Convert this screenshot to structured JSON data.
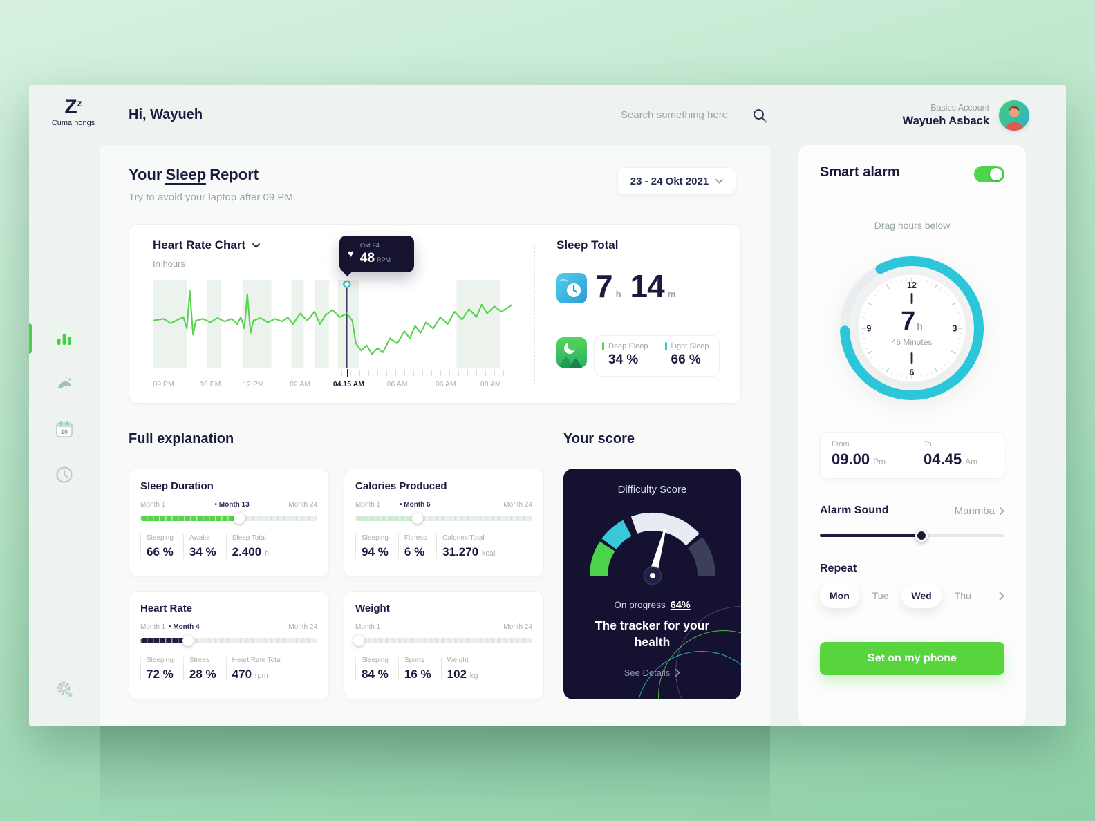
{
  "palette": {
    "accent_green": "#4ccd49",
    "accent_teal": "#33c6d8",
    "navy": "#1d1a40",
    "muted": "#9aa69f",
    "dark_card": "#151231"
  },
  "header": {
    "logo": {
      "mark": "Z",
      "mark_small": "z",
      "caption": "Cuma nongs"
    },
    "greeting": "Hi, Wayueh",
    "search_placeholder": "Search something here",
    "account_type": "Basics Account",
    "account_name": "Wayueh Asback"
  },
  "sidebar": {
    "calendar_day": "10"
  },
  "report": {
    "title_pre": "Your",
    "title_mid": "Sleep",
    "title_post": "Report",
    "subtitle": "Try to avoid your laptop after 09 PM.",
    "date_range": "23 - 24 Okt 2021"
  },
  "heart_chart": {
    "title": "Heart Rate Chart",
    "subtitle": "In hours",
    "tooltip": {
      "date": "Okt 24",
      "value": "48",
      "unit": "RPM",
      "heart": "♥"
    },
    "chart_data": {
      "type": "line",
      "line_color": "#55d44c",
      "band_color": "#ebf3ec",
      "marker": {
        "x_pct": 54,
        "y_pct": 5
      },
      "bands": [
        [
          0,
          9.5
        ],
        [
          15,
          4
        ],
        [
          25,
          8
        ],
        [
          38.5,
          3.5
        ],
        [
          45,
          4
        ],
        [
          51.5,
          6
        ],
        [
          84.5,
          12
        ]
      ],
      "points": [
        [
          0,
          46
        ],
        [
          3,
          44
        ],
        [
          5,
          49
        ],
        [
          7,
          45
        ],
        [
          8.5,
          42
        ],
        [
          9.5,
          55
        ],
        [
          10.3,
          12
        ],
        [
          11.2,
          62
        ],
        [
          12,
          46
        ],
        [
          14,
          44
        ],
        [
          16,
          48
        ],
        [
          18,
          43
        ],
        [
          20,
          47
        ],
        [
          22,
          44
        ],
        [
          23.5,
          50
        ],
        [
          24.5,
          42
        ],
        [
          25.5,
          55
        ],
        [
          26.3,
          16
        ],
        [
          27.2,
          60
        ],
        [
          28,
          46
        ],
        [
          30,
          43
        ],
        [
          32,
          48
        ],
        [
          34,
          44
        ],
        [
          36,
          47
        ],
        [
          37.5,
          42
        ],
        [
          39,
          50
        ],
        [
          41,
          38
        ],
        [
          43,
          46
        ],
        [
          45,
          36
        ],
        [
          46.5,
          50
        ],
        [
          48,
          40
        ],
        [
          50,
          34
        ],
        [
          52,
          42
        ],
        [
          54,
          38
        ],
        [
          55.5,
          46
        ],
        [
          56.5,
          72
        ],
        [
          58,
          80
        ],
        [
          59.5,
          74
        ],
        [
          61,
          84
        ],
        [
          62.5,
          77
        ],
        [
          64,
          82
        ],
        [
          66,
          66
        ],
        [
          68,
          72
        ],
        [
          70,
          58
        ],
        [
          71.5,
          66
        ],
        [
          73,
          52
        ],
        [
          74.5,
          60
        ],
        [
          76,
          48
        ],
        [
          78,
          55
        ],
        [
          80,
          42
        ],
        [
          82,
          50
        ],
        [
          84,
          36
        ],
        [
          86,
          45
        ],
        [
          88,
          33
        ],
        [
          90,
          42
        ],
        [
          91.5,
          28
        ],
        [
          93,
          38
        ],
        [
          95,
          30
        ],
        [
          97,
          36
        ],
        [
          100,
          28
        ]
      ],
      "x_labels": [
        {
          "label": "09 PM",
          "pct": 3
        },
        {
          "label": "10 PM",
          "pct": 16
        },
        {
          "label": "12 PM",
          "pct": 28
        },
        {
          "label": "02 AM",
          "pct": 41
        },
        {
          "label": "04.15 AM",
          "pct": 54.5,
          "bold": true
        },
        {
          "label": "06 AM",
          "pct": 68
        },
        {
          "label": "06 AM",
          "pct": 81.5
        },
        {
          "label": "08 AM",
          "pct": 94
        }
      ]
    }
  },
  "sleep_total": {
    "title": "Sleep Total",
    "hours": "7",
    "hours_unit": "h",
    "minutes": "14",
    "minutes_unit": "m",
    "stats": [
      {
        "label": "Deep Sleep",
        "value": "34 %",
        "color": "#55d44c"
      },
      {
        "label": "Light Sleep",
        "value": "66 %",
        "color": "#33c6d8"
      }
    ]
  },
  "full_explanation": {
    "heading": "Full explanation",
    "cards": [
      {
        "title": "Sleep Duration",
        "start": "Month 1",
        "mid": "• Month 13",
        "end": "Month 24",
        "slider": {
          "pct": 56,
          "mid_pct": 42,
          "color": "#55d44c"
        },
        "stats": [
          {
            "label": "Sleeping",
            "value": "66 %",
            "unit": ""
          },
          {
            "label": "Awake",
            "value": "34 %",
            "unit": ""
          },
          {
            "label": "Sleep Total",
            "value": "2.400",
            "unit": "h"
          }
        ]
      },
      {
        "title": "Calories Produced",
        "start": "Month 1",
        "mid": "• Month 6",
        "end": "Month 24",
        "slider": {
          "pct": 35,
          "mid_pct": 25,
          "color": "#cdeccf"
        },
        "stats": [
          {
            "label": "Sleeping",
            "value": "94 %",
            "unit": ""
          },
          {
            "label": "Fitness",
            "value": "6 %",
            "unit": ""
          },
          {
            "label": "Calories Total",
            "value": "31.270",
            "unit": "kcal"
          }
        ]
      },
      {
        "title": "Heart Rate",
        "start": "Month 1",
        "mid": "• Month 4",
        "end": "Month 24",
        "slider": {
          "pct": 27,
          "mid_pct": 16,
          "color": "#201d43"
        },
        "stats": [
          {
            "label": "Sleeping",
            "value": "72 %",
            "unit": ""
          },
          {
            "label": "Strees",
            "value": "28 %",
            "unit": ""
          },
          {
            "label": "Heart Rate Total",
            "value": "470",
            "unit": "rpm"
          }
        ]
      },
      {
        "title": "Weight",
        "start": "Month 1",
        "mid": "",
        "end": "Month 24",
        "slider": {
          "pct": 2,
          "mid_pct": 0,
          "color": "#e6ede9"
        },
        "stats": [
          {
            "label": "Sleeping",
            "value": "84 %",
            "unit": ""
          },
          {
            "label": "Sports",
            "value": "16 %",
            "unit": ""
          },
          {
            "label": "Weight",
            "value": "102",
            "unit": "kg"
          }
        ]
      }
    ]
  },
  "score": {
    "heading": "Your score",
    "card_title": "Difficulty Score",
    "progress_label": "On progress",
    "progress_value": "64%",
    "tagline": "The tracker for your health",
    "details_label": "See Details",
    "gauge": {
      "needle_deg": 15,
      "segments": [
        {
          "from": 180,
          "to": 147,
          "color": "#4bd44a"
        },
        {
          "from": 144,
          "to": 118,
          "color": "#37c9d9"
        },
        {
          "from": 110,
          "to": 42,
          "color": "#e9ebf4"
        },
        {
          "from": 38,
          "to": 0,
          "color": "#3c3f5a"
        }
      ]
    }
  },
  "smart_alarm": {
    "title": "Smart alarm",
    "enabled": true,
    "hint": "Drag hours below",
    "clock": {
      "hours": "7",
      "hours_unit": "h",
      "minutes_label": "45 Minutes",
      "numbers": [
        "12",
        "3",
        "6",
        "9"
      ],
      "arc": {
        "start": 118,
        "end": 182
      }
    },
    "from": {
      "label": "From",
      "time": "09.00",
      "meridiem": "Pm"
    },
    "to": {
      "label": "To",
      "time": "04.45",
      "meridiem": "Am"
    },
    "sound": {
      "label": "Alarm Sound",
      "value": "Marimba",
      "slider_pct": 55
    },
    "repeat": {
      "label": "Repeat",
      "days": [
        {
          "label": "Mon",
          "active": true
        },
        {
          "label": "Tue",
          "active": false
        },
        {
          "label": "Wed",
          "active": true
        },
        {
          "label": "Thu",
          "active": false
        }
      ]
    },
    "cta": "Set on my phone"
  }
}
